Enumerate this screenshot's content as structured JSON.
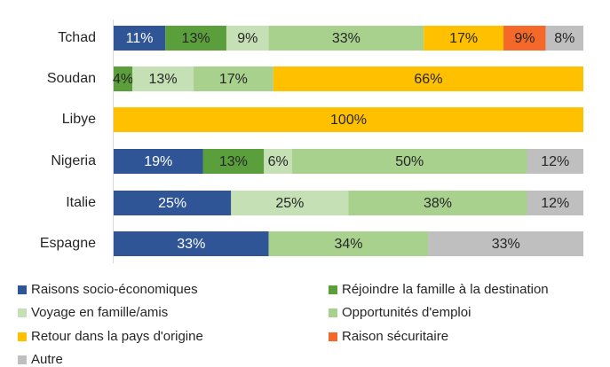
{
  "chart_data": {
    "type": "stacked-barh",
    "categories": [
      "Tchad",
      "Soudan",
      "Libye",
      "Nigeria",
      "Italie",
      "Espagne"
    ],
    "xlim": [
      0,
      100
    ],
    "series": [
      {
        "name": "Raisons socio-économiques",
        "color": "#2f5597",
        "values": [
          11,
          null,
          null,
          19,
          25,
          33
        ],
        "value_labels": [
          "11%",
          null,
          null,
          "19%",
          "25%",
          "33%"
        ]
      },
      {
        "name": "Réjoindre la famille à la destination",
        "color": "#5b9f3d",
        "values": [
          13,
          4,
          null,
          13,
          null,
          null
        ],
        "value_labels": [
          "13%",
          "4%",
          null,
          "13%",
          null,
          null
        ]
      },
      {
        "name": "Voyage en famille/amis",
        "color": "#c5e0b4",
        "values": [
          9,
          13,
          null,
          6,
          25,
          null
        ],
        "value_labels": [
          "9%",
          "13%",
          null,
          "6%",
          "25%",
          null
        ]
      },
      {
        "name": "Opportunités d'emploi",
        "color": "#a9d18e",
        "values": [
          33,
          17,
          null,
          50,
          38,
          34
        ],
        "value_labels": [
          "33%",
          "17%",
          null,
          "50%",
          "38%",
          "34%"
        ]
      },
      {
        "name": "Retour dans la pays d'origine",
        "color": "#ffc000",
        "values": [
          17,
          66,
          100,
          null,
          null,
          null
        ],
        "value_labels": [
          "17%",
          "66%",
          "100%",
          null,
          null,
          null
        ]
      },
      {
        "name": "Raison sécuritaire",
        "color": "#f4692a",
        "values": [
          9,
          null,
          null,
          null,
          null,
          null
        ],
        "value_labels": [
          "9%",
          null,
          null,
          null,
          null,
          null
        ]
      },
      {
        "name": "Autre",
        "color": "#bfbfbf",
        "values": [
          8,
          null,
          null,
          12,
          12,
          33
        ],
        "value_labels": [
          "8%",
          null,
          null,
          "12%",
          "12%",
          "33%"
        ]
      }
    ]
  }
}
